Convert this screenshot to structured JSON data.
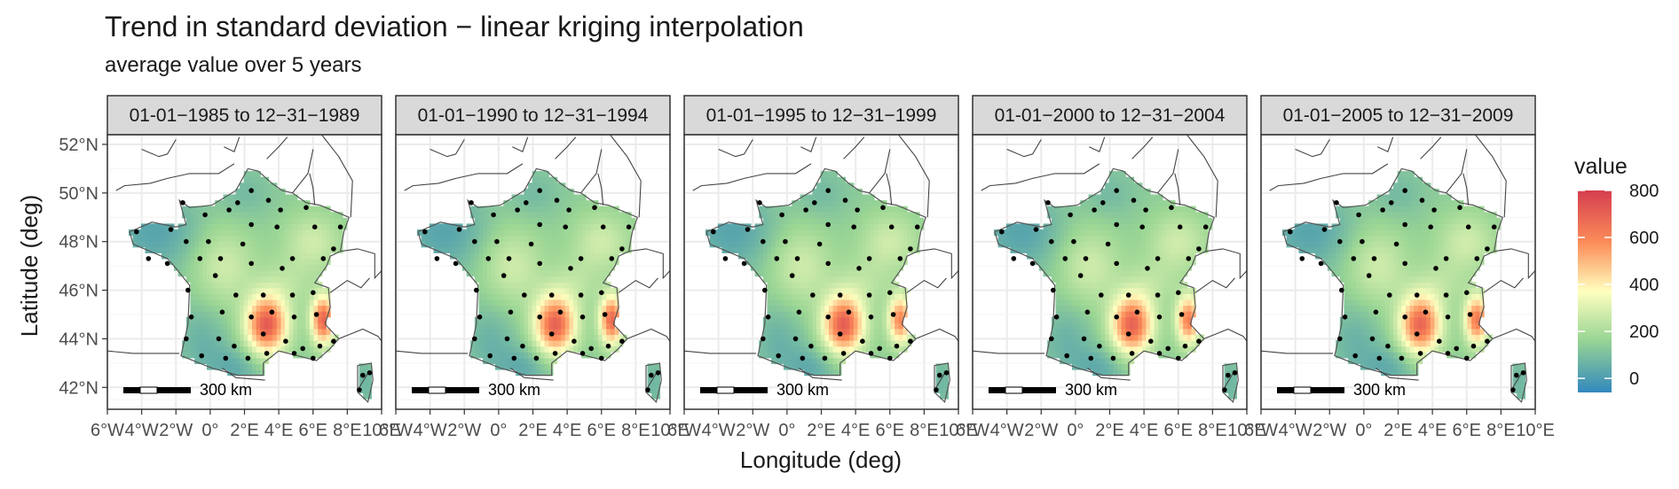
{
  "chart_data": {
    "type": "heatmap",
    "title": "Trend in standard deviation − linear kriging interpolation",
    "subtitle": "average value over 5 years",
    "xlabel": "Longitude (deg)",
    "ylabel": "Latitude (deg)",
    "x_ticks": [
      "6°W",
      "4°W",
      "2°W",
      "0°",
      "2°E",
      "4°E",
      "6°E",
      "8°E",
      "10°E"
    ],
    "x_tick_values": [
      -6,
      -4,
      -2,
      0,
      2,
      4,
      6,
      8,
      10
    ],
    "y_ticks": [
      "42°N",
      "44°N",
      "46°N",
      "48°N",
      "50°N",
      "52°N"
    ],
    "y_tick_values": [
      42,
      44,
      46,
      48,
      50,
      52
    ],
    "xlim": [
      -6,
      10
    ],
    "ylim": [
      41.1,
      52.4
    ],
    "legend": {
      "title": "value",
      "ticks": [
        0,
        200,
        400,
        600,
        800
      ],
      "range": [
        -60,
        800
      ],
      "colors": [
        "#3288bd",
        "#99d594",
        "#ffffbf",
        "#fc8d59",
        "#d53e4f"
      ],
      "position": "right"
    },
    "scale_bar_label": "300 km",
    "grid": true,
    "facets": [
      {
        "label": "01-01−1985 to 12−31−1989",
        "hot_west": 720,
        "hot_east": 690
      },
      {
        "label": "01-01−1990 to 12−31−1994",
        "hot_west": 700,
        "hot_east": 680
      },
      {
        "label": "01-01−1995 to 12−31−1999",
        "hot_west": 710,
        "hot_east": 600
      },
      {
        "label": "01-01−2000 to 12−31−2004",
        "hot_west": 700,
        "hot_east": 620
      },
      {
        "label": "01-01−2005 to 12−31−2009",
        "hot_west": 690,
        "hot_east": 640
      }
    ],
    "stations": [
      [
        2.4,
        50.1
      ],
      [
        1.6,
        49.6
      ],
      [
        3.4,
        49.7
      ],
      [
        4.1,
        49.3
      ],
      [
        5.6,
        49.4
      ],
      [
        -1.6,
        49.6
      ],
      [
        -0.3,
        49.1
      ],
      [
        1.1,
        49.3
      ],
      [
        2.4,
        48.7
      ],
      [
        3.9,
        48.6
      ],
      [
        6.1,
        48.6
      ],
      [
        7.6,
        48.6
      ],
      [
        -4.3,
        48.4
      ],
      [
        -2.3,
        48.5
      ],
      [
        -1.4,
        48.0
      ],
      [
        -0.1,
        48.0
      ],
      [
        1.9,
        47.9
      ],
      [
        4.8,
        47.3
      ],
      [
        6.6,
        47.3
      ],
      [
        7.2,
        47.7
      ],
      [
        -3.6,
        47.3
      ],
      [
        -2.5,
        47.1
      ],
      [
        -0.6,
        47.3
      ],
      [
        0.6,
        47.3
      ],
      [
        2.4,
        47.1
      ],
      [
        4.2,
        46.9
      ],
      [
        -1.3,
        46.0
      ],
      [
        0.3,
        46.6
      ],
      [
        1.5,
        45.8
      ],
      [
        3.1,
        45.8
      ],
      [
        4.8,
        45.8
      ],
      [
        6.0,
        45.9
      ],
      [
        -1.1,
        44.9
      ],
      [
        0.7,
        45.1
      ],
      [
        2.4,
        44.9
      ],
      [
        3.6,
        45.1
      ],
      [
        4.9,
        44.9
      ],
      [
        6.2,
        45.0
      ],
      [
        -1.4,
        44.0
      ],
      [
        0.5,
        44.0
      ],
      [
        1.4,
        43.7
      ],
      [
        3.1,
        44.2
      ],
      [
        4.4,
        43.9
      ],
      [
        5.4,
        43.6
      ],
      [
        6.4,
        43.7
      ],
      [
        7.2,
        43.9
      ],
      [
        -0.5,
        43.3
      ],
      [
        0.9,
        43.2
      ],
      [
        2.2,
        43.2
      ],
      [
        3.3,
        43.4
      ],
      [
        4.9,
        43.4
      ],
      [
        6.0,
        43.2
      ],
      [
        8.9,
        42.5
      ],
      [
        9.3,
        42.6
      ],
      [
        8.7,
        41.9
      ]
    ]
  }
}
